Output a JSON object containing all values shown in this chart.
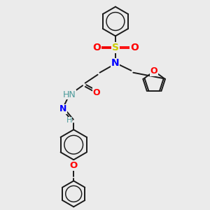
{
  "bg_color": "#ebebeb",
  "bond_color": "#1a1a1a",
  "N_color": "#0000ff",
  "O_color": "#ff0000",
  "S_color": "#cccc00",
  "H_color": "#4a9a9a",
  "figsize": [
    3.0,
    3.0
  ],
  "dpi": 100,
  "xlim": [
    0,
    10
  ],
  "ylim": [
    0,
    10
  ]
}
